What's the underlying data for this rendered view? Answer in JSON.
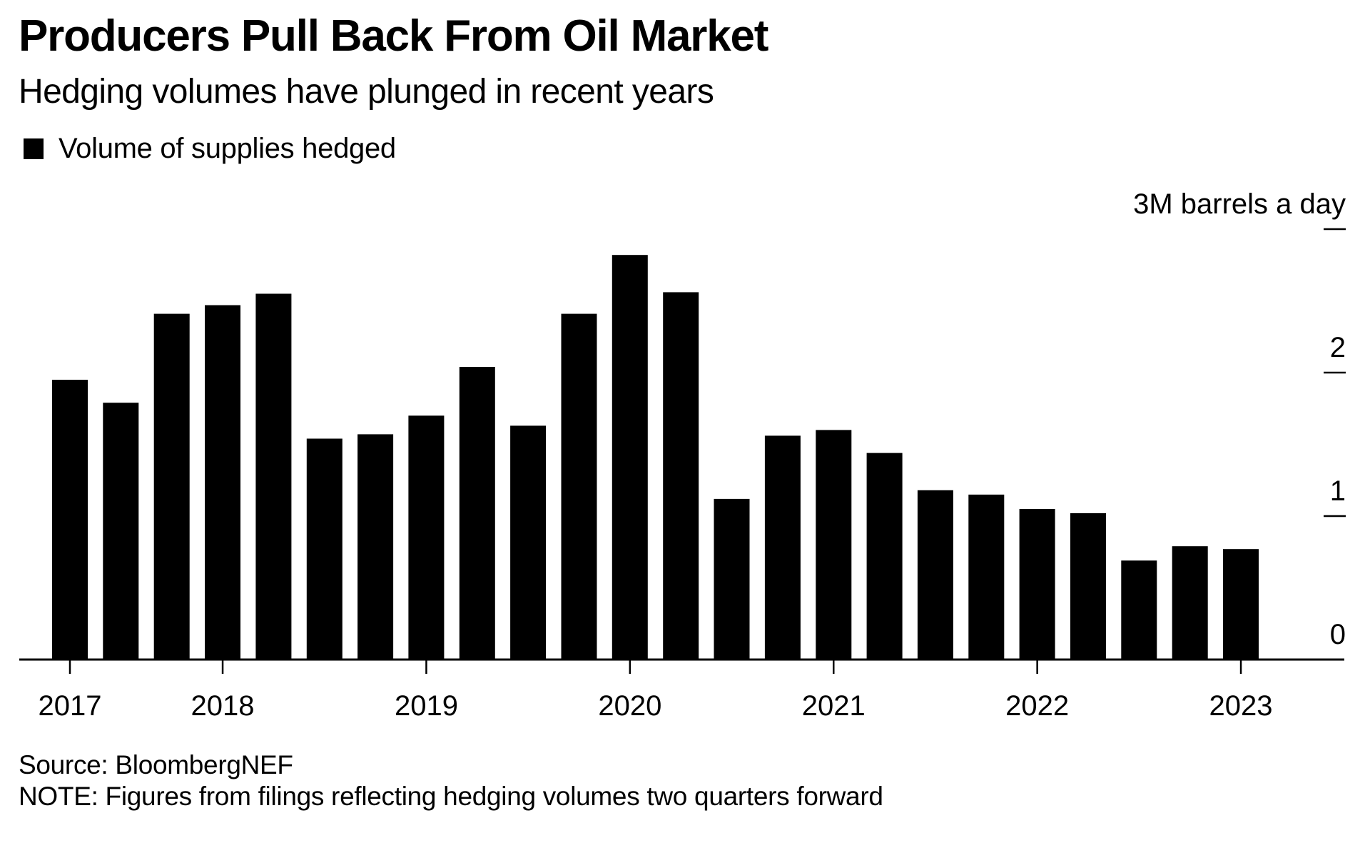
{
  "header": {
    "title": "Producers Pull Back From Oil Market",
    "subtitle": "Hedging volumes have plunged in recent years"
  },
  "legend": {
    "items": [
      {
        "label": "Volume of supplies hedged",
        "color": "#000000"
      }
    ]
  },
  "footer": {
    "source": "Source: BloombergNEF",
    "note": "NOTE: Figures from filings reflecting hedging volumes two quarters forward"
  },
  "chart_data": {
    "type": "bar",
    "title": "Producers Pull Back From Oil Market",
    "subtitle": "Hedging volumes have plunged in recent years",
    "xlabel": "",
    "ylabel": "M barrels a day",
    "ylim": [
      0,
      3
    ],
    "y_ticks": [
      {
        "value": 3,
        "label": "3M barrels a day"
      },
      {
        "value": 2,
        "label": "2"
      },
      {
        "value": 1,
        "label": "1"
      },
      {
        "value": 0,
        "label": "0"
      }
    ],
    "y_axis_side": "right",
    "grid": false,
    "legend_position": "top-left",
    "bar_color": "#000000",
    "x_ticks": [
      {
        "label": "2017",
        "bar_index": 0
      },
      {
        "label": "2018",
        "bar_index": 3
      },
      {
        "label": "2019",
        "bar_index": 7
      },
      {
        "label": "2020",
        "bar_index": 11
      },
      {
        "label": "2021",
        "bar_index": 15
      },
      {
        "label": "2022",
        "bar_index": 19
      },
      {
        "label": "2023",
        "bar_index": 23
      }
    ],
    "series": [
      {
        "name": "Volume of supplies hedged",
        "values": [
          1.95,
          1.79,
          2.41,
          2.47,
          2.55,
          1.54,
          1.57,
          1.7,
          2.04,
          1.63,
          2.41,
          2.82,
          2.56,
          1.12,
          1.56,
          1.6,
          1.44,
          1.18,
          1.15,
          1.05,
          1.02,
          0.69,
          0.79,
          0.77
        ]
      }
    ]
  }
}
